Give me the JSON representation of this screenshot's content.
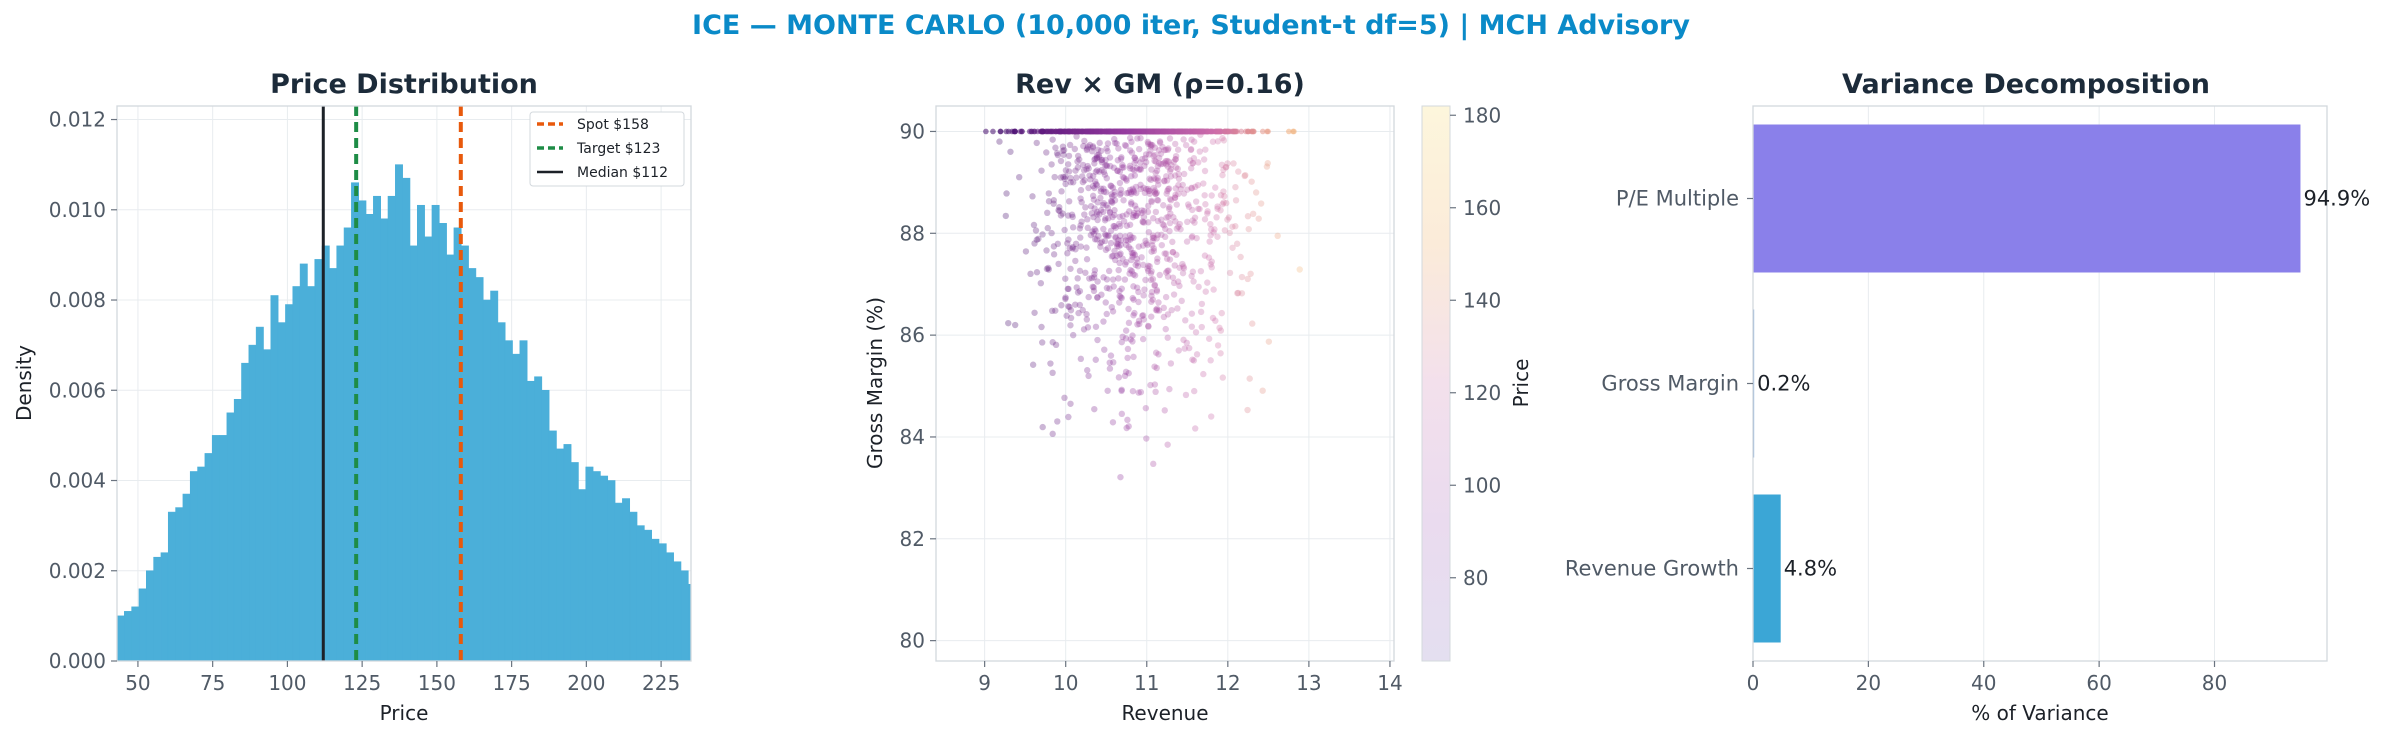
{
  "title": "ICE — MONTE CARLO (10,000 iter, Student-t df=5) | MCH Advisory",
  "colors": {
    "title": "#0a8ac8",
    "hist": "#4bafd9",
    "spot": "#e8590c",
    "target": "#1e8c46",
    "median": "#1c2128",
    "pe": "#8a80ea",
    "gm": "#7fa8d8",
    "rev": "#3ba6d6"
  },
  "chart_data": [
    {
      "type": "histogram",
      "title": "Price Distribution",
      "xlabel": "Price",
      "ylabel": "Density",
      "xlim": [
        43,
        235
      ],
      "ylim": [
        0,
        0.0123
      ],
      "xticks": [
        "50",
        "75",
        "100",
        "125",
        "150",
        "175",
        "200",
        "225"
      ],
      "yticks": [
        "0.000",
        "0.002",
        "0.004",
        "0.006",
        "0.008",
        "0.010",
        "0.012"
      ],
      "grid": true,
      "legend_position": "top-right",
      "legend": [
        "Spot $158",
        "Target $123",
        "Median $112"
      ],
      "vlines": [
        {
          "name": "Spot $158",
          "x": 158,
          "style": "dashed",
          "color": "#e8590c"
        },
        {
          "name": "Target $123",
          "x": 123,
          "style": "dashed",
          "color": "#1e8c46"
        },
        {
          "name": "Median $112",
          "x": 112,
          "style": "solid",
          "color": "#1c2128"
        }
      ],
      "bin_start": 43,
      "bin_width": 2.45,
      "densities": [
        0.001,
        0.0011,
        0.0012,
        0.0016,
        0.002,
        0.0023,
        0.0024,
        0.0033,
        0.0034,
        0.0037,
        0.0042,
        0.0043,
        0.0046,
        0.005,
        0.005,
        0.0055,
        0.0058,
        0.0066,
        0.007,
        0.0074,
        0.0069,
        0.0081,
        0.0075,
        0.0079,
        0.0083,
        0.0088,
        0.0083,
        0.0089,
        0.0092,
        0.0087,
        0.0092,
        0.0096,
        0.0106,
        0.0102,
        0.0099,
        0.0103,
        0.0098,
        0.0103,
        0.011,
        0.0107,
        0.0092,
        0.0101,
        0.0094,
        0.0101,
        0.0097,
        0.009,
        0.0096,
        0.0092,
        0.0087,
        0.0085,
        0.008,
        0.0082,
        0.0075,
        0.0071,
        0.0068,
        0.0071,
        0.0062,
        0.0063,
        0.006,
        0.0051,
        0.0047,
        0.0048,
        0.0044,
        0.0038,
        0.0043,
        0.0042,
        0.0041,
        0.004,
        0.0035,
        0.0036,
        0.0033,
        0.003,
        0.0029,
        0.0027,
        0.0026,
        0.0024,
        0.0022,
        0.002,
        0.0017,
        0.0019,
        0.0017,
        0.0015,
        0.0013,
        0.0014,
        0.0018,
        0.0015,
        0.001,
        0.0012,
        0.0016,
        0.0009,
        0.001,
        0.0013,
        0.0006,
        0.0006,
        0.0006,
        0.0005,
        0.0005,
        0.0004,
        0.0005,
        0.0003,
        0.0004,
        0.0003,
        0.0004,
        0.0003,
        0.0003,
        0.0004,
        0.0002,
        0.0002,
        0.0002,
        0.0001,
        0.0001
      ]
    },
    {
      "type": "scatter",
      "title": "Rev × GM (ρ=0.16)",
      "xlabel": "Revenue",
      "ylabel": "Gross Margin (%)",
      "xlim": [
        8.4,
        14.05
      ],
      "ylim": [
        79.6,
        90.5
      ],
      "xticks": [
        "9",
        "10",
        "11",
        "12",
        "13",
        "14"
      ],
      "yticks": [
        "80",
        "82",
        "84",
        "86",
        "88",
        "90"
      ],
      "grid": true,
      "gm_cap": 90,
      "revenue_center": 10.9,
      "revenue_spread": 0.65,
      "colorbar": {
        "label": "Price",
        "min": 62,
        "max": 182,
        "ticks": [
          "80",
          "100",
          "120",
          "140",
          "160",
          "180"
        ],
        "colormap": "magma_r (light)"
      }
    },
    {
      "type": "barh",
      "title": "Variance Decomposition",
      "xlabel": "% of Variance",
      "xlim": [
        0,
        99.5
      ],
      "xticks": [
        "0",
        "20",
        "40",
        "60",
        "80"
      ],
      "grid": true,
      "categories": [
        "P/E Multiple",
        "Gross Margin",
        "Revenue Growth"
      ],
      "values": [
        94.9,
        0.2,
        4.8
      ],
      "labels": [
        "94.9%",
        "0.2%",
        "4.8%"
      ]
    }
  ]
}
